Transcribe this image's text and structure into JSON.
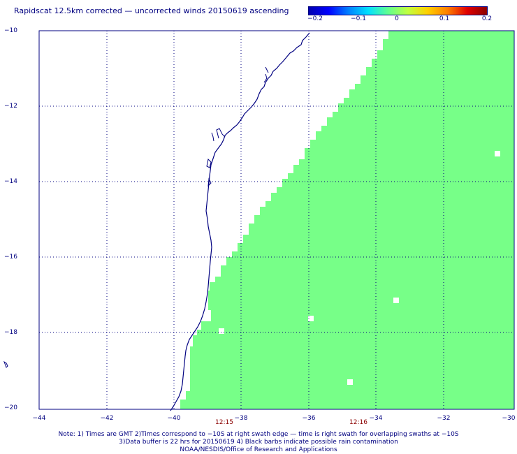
{
  "title": "Rapidscat 12.5km corrected — uncorrected winds 20150619 ascending",
  "colorbar": {
    "ticks": [
      "−0.2",
      "−0.1",
      "0",
      "0.1",
      "0.2"
    ],
    "colors": [
      "#0000b0",
      "#0000ff",
      "#0080ff",
      "#00e0ff",
      "#60ff90",
      "#c0ff40",
      "#ffd000",
      "#ff8000",
      "#e00000",
      "#8b0000"
    ]
  },
  "map": {
    "lat_labels": [
      "−10",
      "−12",
      "−14",
      "−16",
      "−18",
      "−20"
    ],
    "lon_labels": [
      "−44",
      "−42",
      "−40",
      "−38",
      "−36",
      "−34",
      "−32",
      "−30"
    ],
    "time_labels": [
      "12:15",
      "12:16"
    ],
    "swath_color": "#77ff88",
    "coast_color": "#000080",
    "grid_color": "#000080"
  },
  "notes": {
    "line1": "Note: 1) Times are GMT 2)Times correspond to −10S at right swath edge — time is right swath for overlapping swaths at −10S",
    "line2": "3)Data buffer is 22 hrs for 20150619 4) Black barbs indicate possible rain contamination",
    "line3": "NOAA/NESDIS/Office of Research and Applications"
  }
}
